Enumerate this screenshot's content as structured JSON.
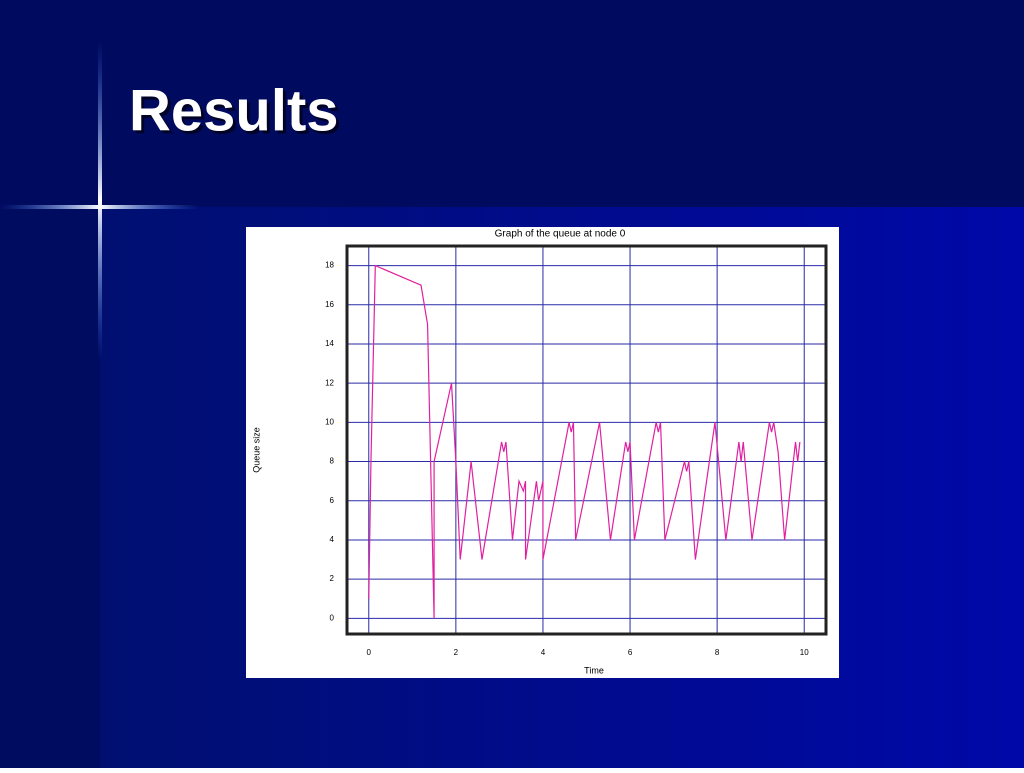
{
  "slide": {
    "title": "Results"
  },
  "chart_data": {
    "type": "line",
    "title": "Graph of the queue at node 0",
    "x_label": "Time",
    "y_label": "Queue size",
    "x": [
      0,
      0.05,
      0.15,
      1.2,
      1.35,
      1.5,
      1.5,
      1.9,
      2.0,
      2.1,
      2.35,
      2.6,
      3.05,
      3.1,
      3.15,
      3.3,
      3.45,
      3.55,
      3.6,
      3.6,
      3.85,
      3.9,
      4.0,
      4.0,
      4.6,
      4.65,
      4.7,
      4.75,
      5.3,
      5.55,
      5.9,
      5.95,
      6.0,
      6.1,
      6.6,
      6.65,
      6.7,
      6.8,
      7.25,
      7.3,
      7.35,
      7.5,
      7.95,
      8.2,
      8.5,
      8.55,
      8.6,
      8.8,
      9.2,
      9.25,
      9.3,
      9.4,
      9.55,
      9.8,
      9.85,
      9.9
    ],
    "values": [
      1,
      8,
      18,
      17,
      15,
      0,
      8,
      12,
      8,
      3,
      8,
      3,
      9,
      8.5,
      9,
      4,
      7,
      6.5,
      7,
      3,
      7,
      6,
      7,
      3,
      10,
      9.5,
      10,
      4,
      10,
      4,
      9,
      8.5,
      9,
      4,
      10,
      9.5,
      10,
      4,
      8,
      7.5,
      8,
      3,
      10,
      4,
      9,
      8,
      9,
      4,
      10,
      9.5,
      10,
      8.5,
      4,
      9,
      8,
      9
    ],
    "color": "#e020a0",
    "xlim": [
      -0.5,
      10.5
    ],
    "xticks": [
      0,
      2,
      4,
      6,
      8,
      10
    ],
    "ylim": [
      -0.8,
      19
    ],
    "yticks": [
      0,
      2,
      4,
      6,
      8,
      10,
      12,
      14,
      16,
      18
    ],
    "grid": true,
    "grid_color": "#2a2aa8"
  }
}
